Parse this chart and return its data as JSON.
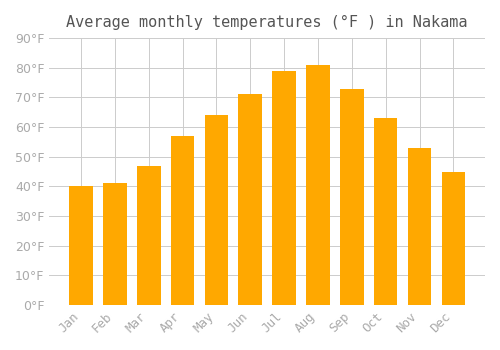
{
  "title": "Average monthly temperatures (°F ) in Nakama",
  "months": [
    "Jan",
    "Feb",
    "Mar",
    "Apr",
    "May",
    "Jun",
    "Jul",
    "Aug",
    "Sep",
    "Oct",
    "Nov",
    "Dec"
  ],
  "values": [
    40,
    41,
    47,
    57,
    64,
    71,
    79,
    81,
    73,
    63,
    53,
    45
  ],
  "bar_color": "#FFA800",
  "bar_edge_color": "#FFA800",
  "background_color": "#ffffff",
  "grid_color": "#cccccc",
  "tick_label_color": "#aaaaaa",
  "title_color": "#555555",
  "ylim": [
    0,
    90
  ],
  "yticks": [
    0,
    10,
    20,
    30,
    40,
    50,
    60,
    70,
    80,
    90
  ],
  "title_fontsize": 11,
  "tick_fontsize": 9
}
